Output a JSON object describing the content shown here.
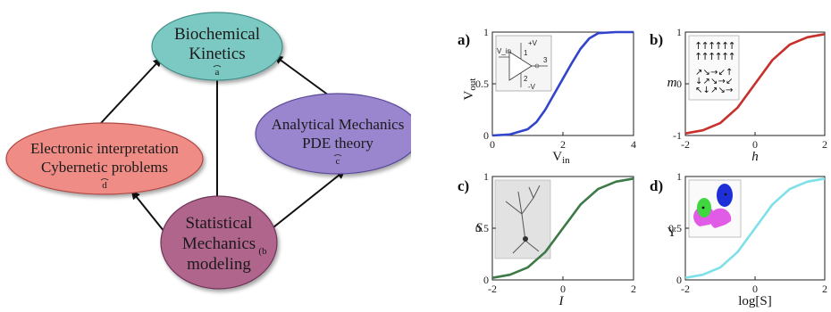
{
  "diagram": {
    "nodes": {
      "a": {
        "line1": "Biochemical",
        "line2": "Kinetics",
        "mark": "a",
        "color": "#7cc8c2"
      },
      "b": {
        "line1": "Statistical",
        "line2": "Mechanics",
        "line3": "modeling",
        "mark": "(b",
        "color": "#b0658c"
      },
      "c": {
        "line1": "Analytical Mechanics",
        "line2": "PDE theory",
        "mark": "c",
        "color": "#9a86cf"
      },
      "d": {
        "line1": "Electronic interpretation",
        "line2": "Cybernetic problems",
        "mark": "d",
        "color": "#ef8c86"
      }
    },
    "edges": [
      {
        "from": "a",
        "to": "b"
      },
      {
        "from": "b",
        "to": "c"
      },
      {
        "from": "c",
        "to": "a"
      },
      {
        "from": "b",
        "to": "d"
      },
      {
        "from": "d",
        "to": "a"
      }
    ]
  },
  "chart_data": [
    {
      "type": "line",
      "panel": "a)",
      "xlabel": "V",
      "xlabel_sub": "in",
      "ylabel": "V",
      "ylabel_sub": "out",
      "xlim": [
        0,
        4
      ],
      "ylim": [
        0,
        1
      ],
      "xticks": [
        "0",
        "2",
        "4"
      ],
      "yticks": [
        "0",
        "0.5",
        "1"
      ],
      "series": [
        {
          "color": "#3344cc",
          "x": [
            0,
            0.5,
            1,
            1.25,
            1.5,
            1.75,
            2,
            2.25,
            2.5,
            2.75,
            3,
            3.5,
            4
          ],
          "y": [
            0.0,
            0.01,
            0.06,
            0.13,
            0.25,
            0.4,
            0.55,
            0.7,
            0.84,
            0.94,
            0.99,
            1.0,
            1.0
          ]
        }
      ],
      "inset": {
        "kind": "circuit",
        "labels": [
          "V_in",
          "+V",
          "-V",
          "3",
          "1",
          "2"
        ]
      }
    },
    {
      "type": "line",
      "panel": "b)",
      "xlabel": "h",
      "ylabel": "m",
      "xlim": [
        -2,
        2
      ],
      "ylim": [
        -1,
        1
      ],
      "xticks": [
        "-2",
        "0",
        "2"
      ],
      "yticks": [
        "-1",
        "0",
        "1"
      ],
      "series": [
        {
          "color": "#c8302c",
          "x": [
            -2,
            -1.5,
            -1,
            -0.5,
            0,
            0.5,
            1,
            1.5,
            2
          ],
          "y": [
            -0.96,
            -0.9,
            -0.76,
            -0.46,
            0.0,
            0.46,
            0.76,
            0.9,
            0.96
          ]
        }
      ],
      "inset": {
        "kind": "spins"
      }
    },
    {
      "type": "line",
      "panel": "c)",
      "xlabel": "I",
      "ylabel": "S",
      "xlim": [
        -2,
        2
      ],
      "ylim": [
        0,
        1
      ],
      "xticks": [
        "-2",
        "0",
        "2"
      ],
      "yticks": [
        "0",
        "0.5",
        "1"
      ],
      "series": [
        {
          "color": "#3d7a48",
          "x": [
            -2,
            -1.5,
            -1,
            -0.5,
            0,
            0.5,
            1,
            1.5,
            2
          ],
          "y": [
            0.02,
            0.05,
            0.12,
            0.27,
            0.5,
            0.73,
            0.88,
            0.95,
            0.98
          ]
        }
      ],
      "inset": {
        "kind": "neuron"
      }
    },
    {
      "type": "line",
      "panel": "d)",
      "xlabel": "log[S]",
      "ylabel": "Y",
      "xlim": [
        -2,
        2
      ],
      "ylim": [
        0,
        1
      ],
      "xticks": [
        "-2",
        "0",
        "2"
      ],
      "yticks": [
        "0",
        "0.5",
        "1"
      ],
      "series": [
        {
          "color": "#7ee0e8",
          "x": [
            -2,
            -1.5,
            -1,
            -0.5,
            0,
            0.5,
            1,
            1.5,
            2
          ],
          "y": [
            0.02,
            0.05,
            0.12,
            0.27,
            0.5,
            0.73,
            0.88,
            0.95,
            0.98
          ]
        }
      ],
      "inset": {
        "kind": "protein"
      }
    }
  ]
}
